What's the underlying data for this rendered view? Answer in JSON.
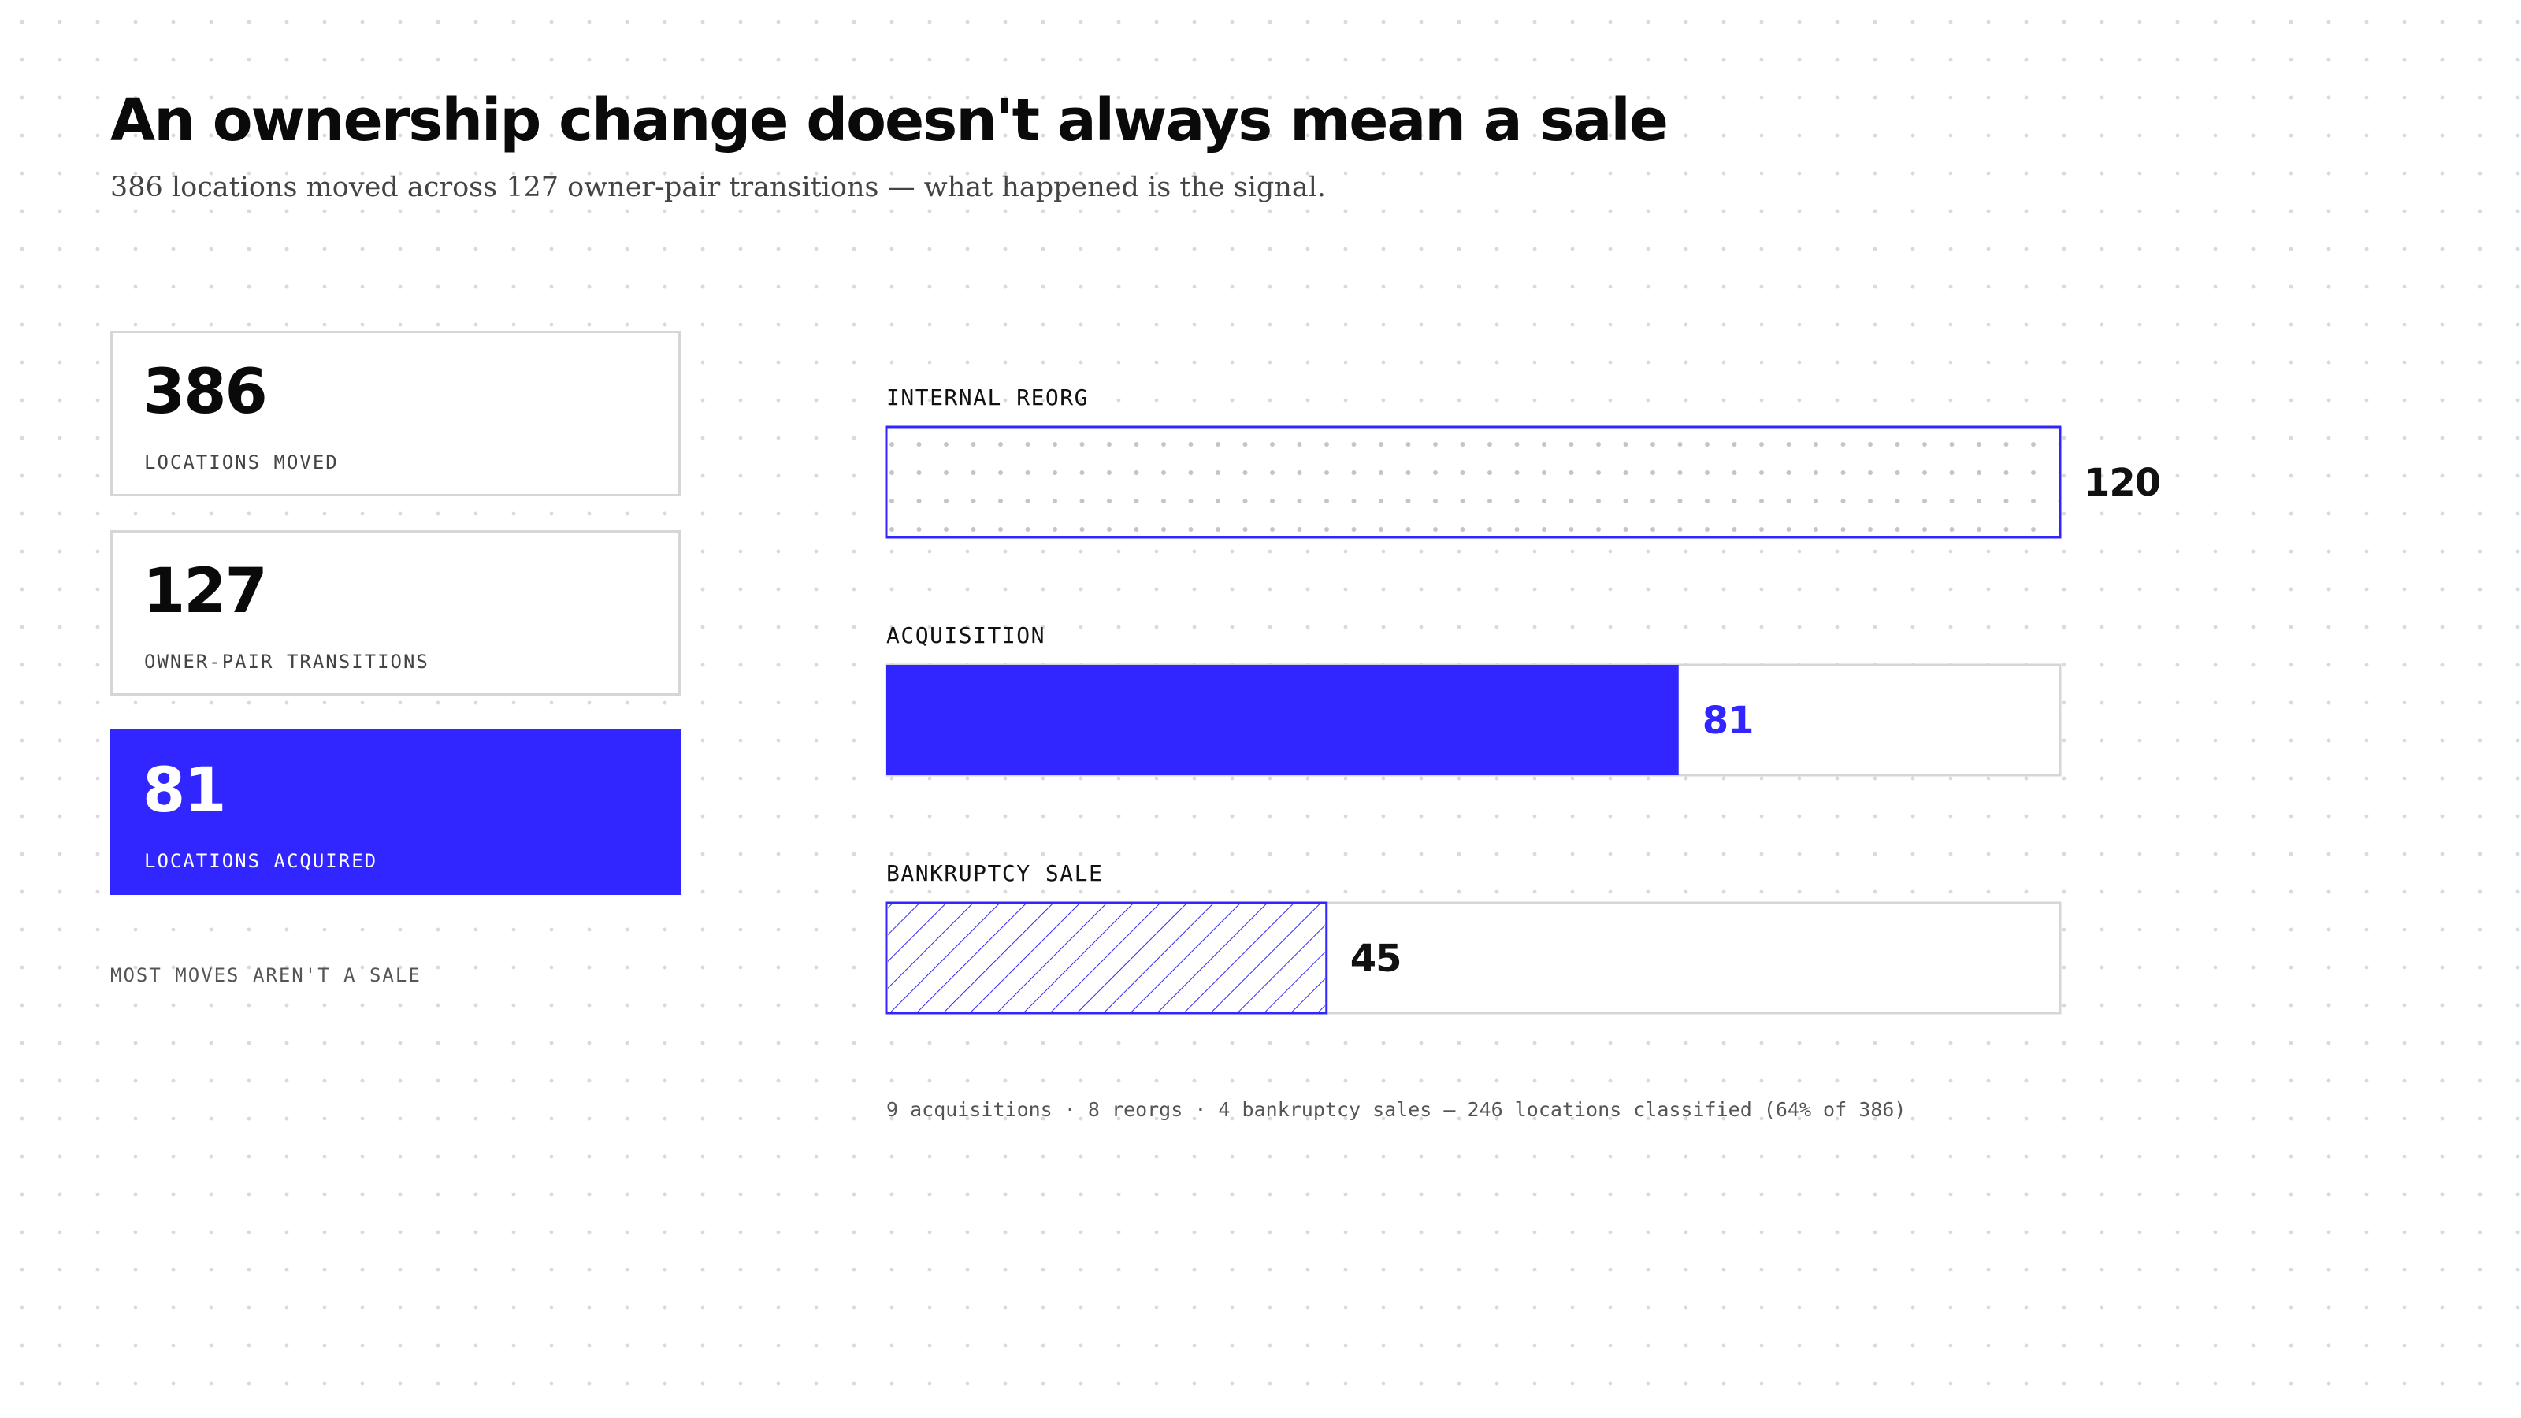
{
  "header": {
    "title": "An ownership change doesn't always mean a sale",
    "subtitle": "386 locations moved across 127 owner-pair transitions — what happened is the signal."
  },
  "stats": [
    {
      "value": "386",
      "label": "LOCATIONS MOVED",
      "highlight": false
    },
    {
      "value": "127",
      "label": "OWNER-PAIR TRANSITIONS",
      "highlight": false
    },
    {
      "value": "81",
      "label": "LOCATIONS ACQUIRED",
      "highlight": true
    }
  ],
  "left_note": "MOST MOVES AREN'T A SALE",
  "colors": {
    "accent": "#3126ff",
    "track_border": "#d6d6d6",
    "dot_pattern": "#c4c4cf",
    "text_dark": "#111111"
  },
  "chart_data": {
    "type": "bar",
    "orientation": "horizontal",
    "categories": [
      "INTERNAL REORG",
      "ACQUISITION",
      "BANKRUPTCY SALE"
    ],
    "values": [
      120,
      81,
      45
    ],
    "xlim": [
      0,
      120
    ],
    "value_labels": [
      "120",
      "81",
      "45"
    ],
    "styles": [
      "dotted-outline",
      "solid-fill",
      "hatched-outline"
    ],
    "label_colors": [
      "#111111",
      "#3126ff",
      "#111111"
    ],
    "grid": false
  },
  "footnote": "9 acquisitions · 8 reorgs · 4 bankruptcy sales — 246 locations classified (64% of 386)"
}
